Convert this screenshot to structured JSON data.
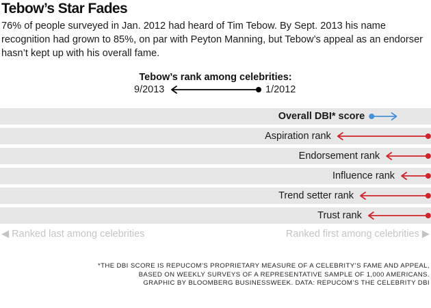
{
  "header": {
    "title": "Tebow’s Star Fades",
    "subtitle": "76% of people surveyed in Jan. 2012 had heard of Tim Tebow. By Sept. 2013 his name recognition had grown to 85%, on par with Peyton Manning, but Tebow’s appeal as an endorser hasn’t kept up with his overall fame."
  },
  "legend": {
    "title": "Tebow’s rank among celebrities:",
    "from_label": "1/2012",
    "to_label": "9/2013"
  },
  "axis": {
    "left_note": "◀ Ranked last among celebrities",
    "right_note": "Ranked first among celebrities ▶"
  },
  "colors": {
    "increase": "#4a90d9",
    "decrease": "#d0232a",
    "band": "#e6e6e6",
    "legend": "#000000"
  },
  "chart_data": {
    "type": "arrow-dot",
    "x_scale": "rank position, 0 = ranked last among celebrities, 1 = ranked first",
    "xlim": [
      0,
      1
    ],
    "series": [
      {
        "name": "1/2012"
      },
      {
        "name": "9/2013"
      }
    ],
    "rows": [
      {
        "label": "Overall DBI* score",
        "bold": true,
        "start": 0.863,
        "end": 0.921
      },
      {
        "label": "Aspiration rank",
        "bold": false,
        "start": 0.995,
        "end": 0.784
      },
      {
        "label": "Endorsement rank",
        "bold": false,
        "start": 0.995,
        "end": 0.898
      },
      {
        "label": "Influence rank",
        "bold": false,
        "start": 0.995,
        "end": 0.933
      },
      {
        "label": "Trend setter rank",
        "bold": false,
        "start": 0.995,
        "end": 0.837
      },
      {
        "label": "Trust rank",
        "bold": false,
        "start": 0.995,
        "end": 0.856
      }
    ]
  },
  "footnote": {
    "lines": [
      "*The DBI score is Repucom’s proprietary measure of a celebrity’s fame and appeal,",
      "based on  weekly surveys of a representative sample of 1,000 Americans.",
      "Graphic by Bloomberg Businessweek. Data: Repucom’s The Celebrity DBI"
    ]
  }
}
